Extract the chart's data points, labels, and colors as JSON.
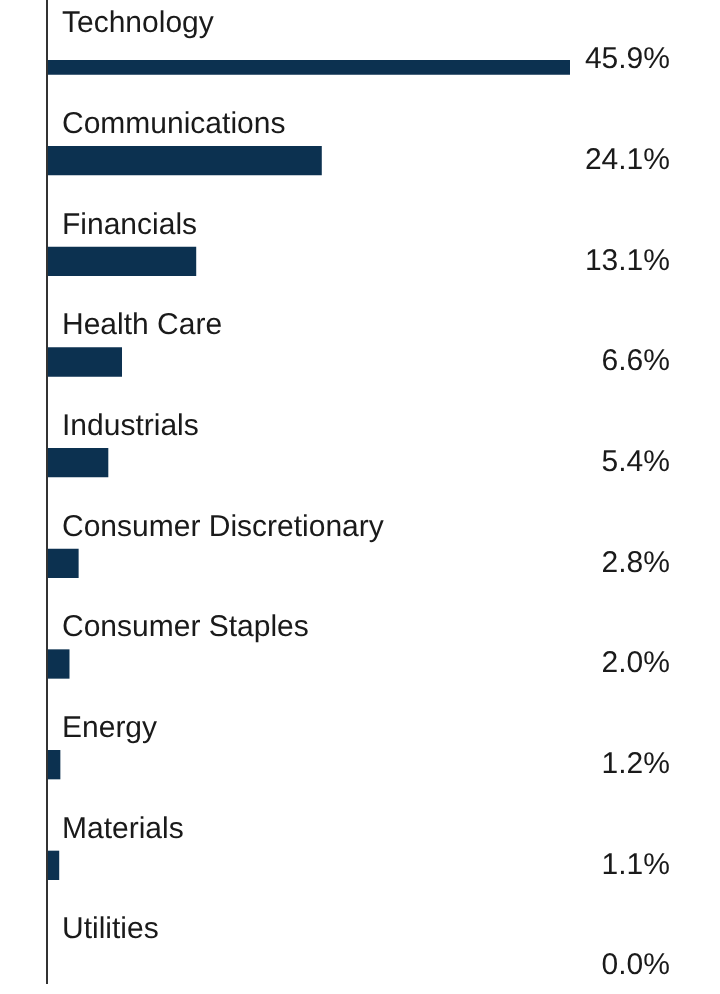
{
  "chart_data": {
    "type": "bar",
    "orientation": "horizontal",
    "categories": [
      "Technology",
      "Communications",
      "Financials",
      "Health Care",
      "Industrials",
      "Consumer Discretionary",
      "Consumer Staples",
      "Energy",
      "Materials",
      "Utilities"
    ],
    "values": [
      45.9,
      24.1,
      13.1,
      6.6,
      5.4,
      2.8,
      2.0,
      1.2,
      1.1,
      0.0
    ],
    "value_labels": [
      "45.9%",
      "24.1%",
      "13.1%",
      "6.6%",
      "5.4%",
      "2.8%",
      "2.0%",
      "1.2%",
      "1.1%",
      "0.0%"
    ],
    "color": "#0c3150",
    "legend": false
  }
}
